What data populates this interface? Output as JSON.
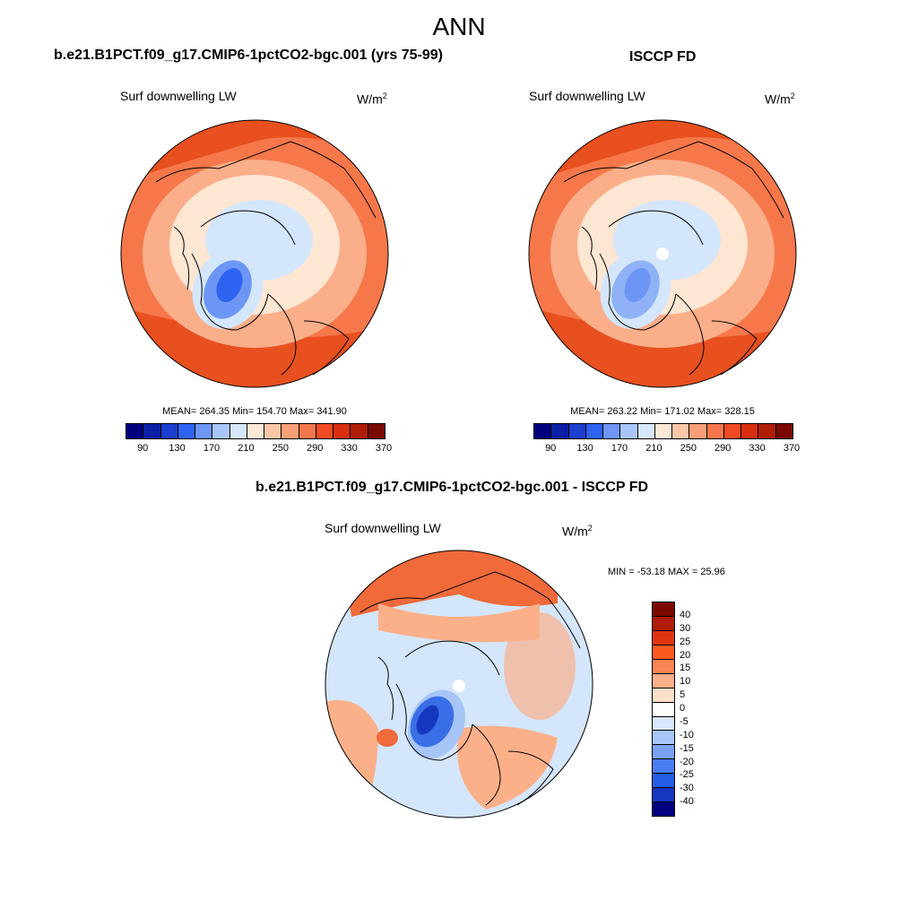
{
  "title": "ANN",
  "panel1": {
    "title": "b.e21.B1PCT.f09_g17.CMIP6-1pctCO2-bgc.001 (yrs 75-99)",
    "variable": "Surf downwelling LW",
    "units": "W/m",
    "units_sup": "2",
    "stats": "MEAN= 264.35  Min= 154.70  Max= 341.90"
  },
  "panel2": {
    "title": "ISCCP FD",
    "variable": "Surf downwelling LW",
    "units": "W/m",
    "units_sup": "2",
    "stats": "MEAN= 263.22  Min= 171.02  Max= 328.15"
  },
  "panel3": {
    "title": "b.e21.B1PCT.f09_g17.CMIP6-1pctCO2-bgc.001 - ISCCP FD",
    "variable": "Surf downwelling LW",
    "units": "W/m",
    "units_sup": "2",
    "stats": "MIN = -53.18 MAX =  25.96"
  },
  "abs_colorbar": {
    "colors": [
      "#00007f",
      "#0a1fa3",
      "#1a3fd1",
      "#2e62f0",
      "#6d95f5",
      "#a9c6fa",
      "#d8e8fc",
      "#fde8d6",
      "#fbc7a7",
      "#f89f78",
      "#f5764d",
      "#f04a22",
      "#d92f10",
      "#b01c06",
      "#7a0a00"
    ],
    "tick_labels": [
      "90",
      "130",
      "170",
      "210",
      "250",
      "290",
      "330",
      "370"
    ]
  },
  "diff_colorbar": {
    "colors": [
      "#7a0a00",
      "#b01c06",
      "#e0360f",
      "#fa5a20",
      "#f88455",
      "#fbb08a",
      "#fde0c8",
      "#ffffff",
      "#d6e6fb",
      "#a7c5f7",
      "#7aa2f2",
      "#4a7ef0",
      "#245de6",
      "#1437c0",
      "#000080"
    ],
    "tick_labels": [
      "40",
      "30",
      "25",
      "20",
      "15",
      "10",
      "5",
      "0",
      "-5",
      "-10",
      "-15",
      "-20",
      "-25",
      "-30",
      "-40"
    ]
  },
  "map_colors": {
    "model": {
      "rim": "#e8501f",
      "outer": "#f6784a",
      "mid": "#fbae8a",
      "inner": "#fde6d2",
      "arctic": "#d4e6fb",
      "greenland": "#6d95f5",
      "greenland_core": "#2e62f0"
    },
    "obs": {
      "rim": "#e8501f",
      "outer": "#f6784a",
      "mid": "#fbae8a",
      "inner": "#fde6d2",
      "arctic": "#d4e6fb",
      "greenland": "#8fb1f6",
      "greenland_core": "#6d95f5"
    },
    "diff": {
      "base": "#d4e6fb",
      "warm": "#fbb08a",
      "hot": "#f06a3a",
      "cool": "#a7c5f7",
      "cold": "#3a6ee6",
      "deep": "#1437c0"
    }
  }
}
